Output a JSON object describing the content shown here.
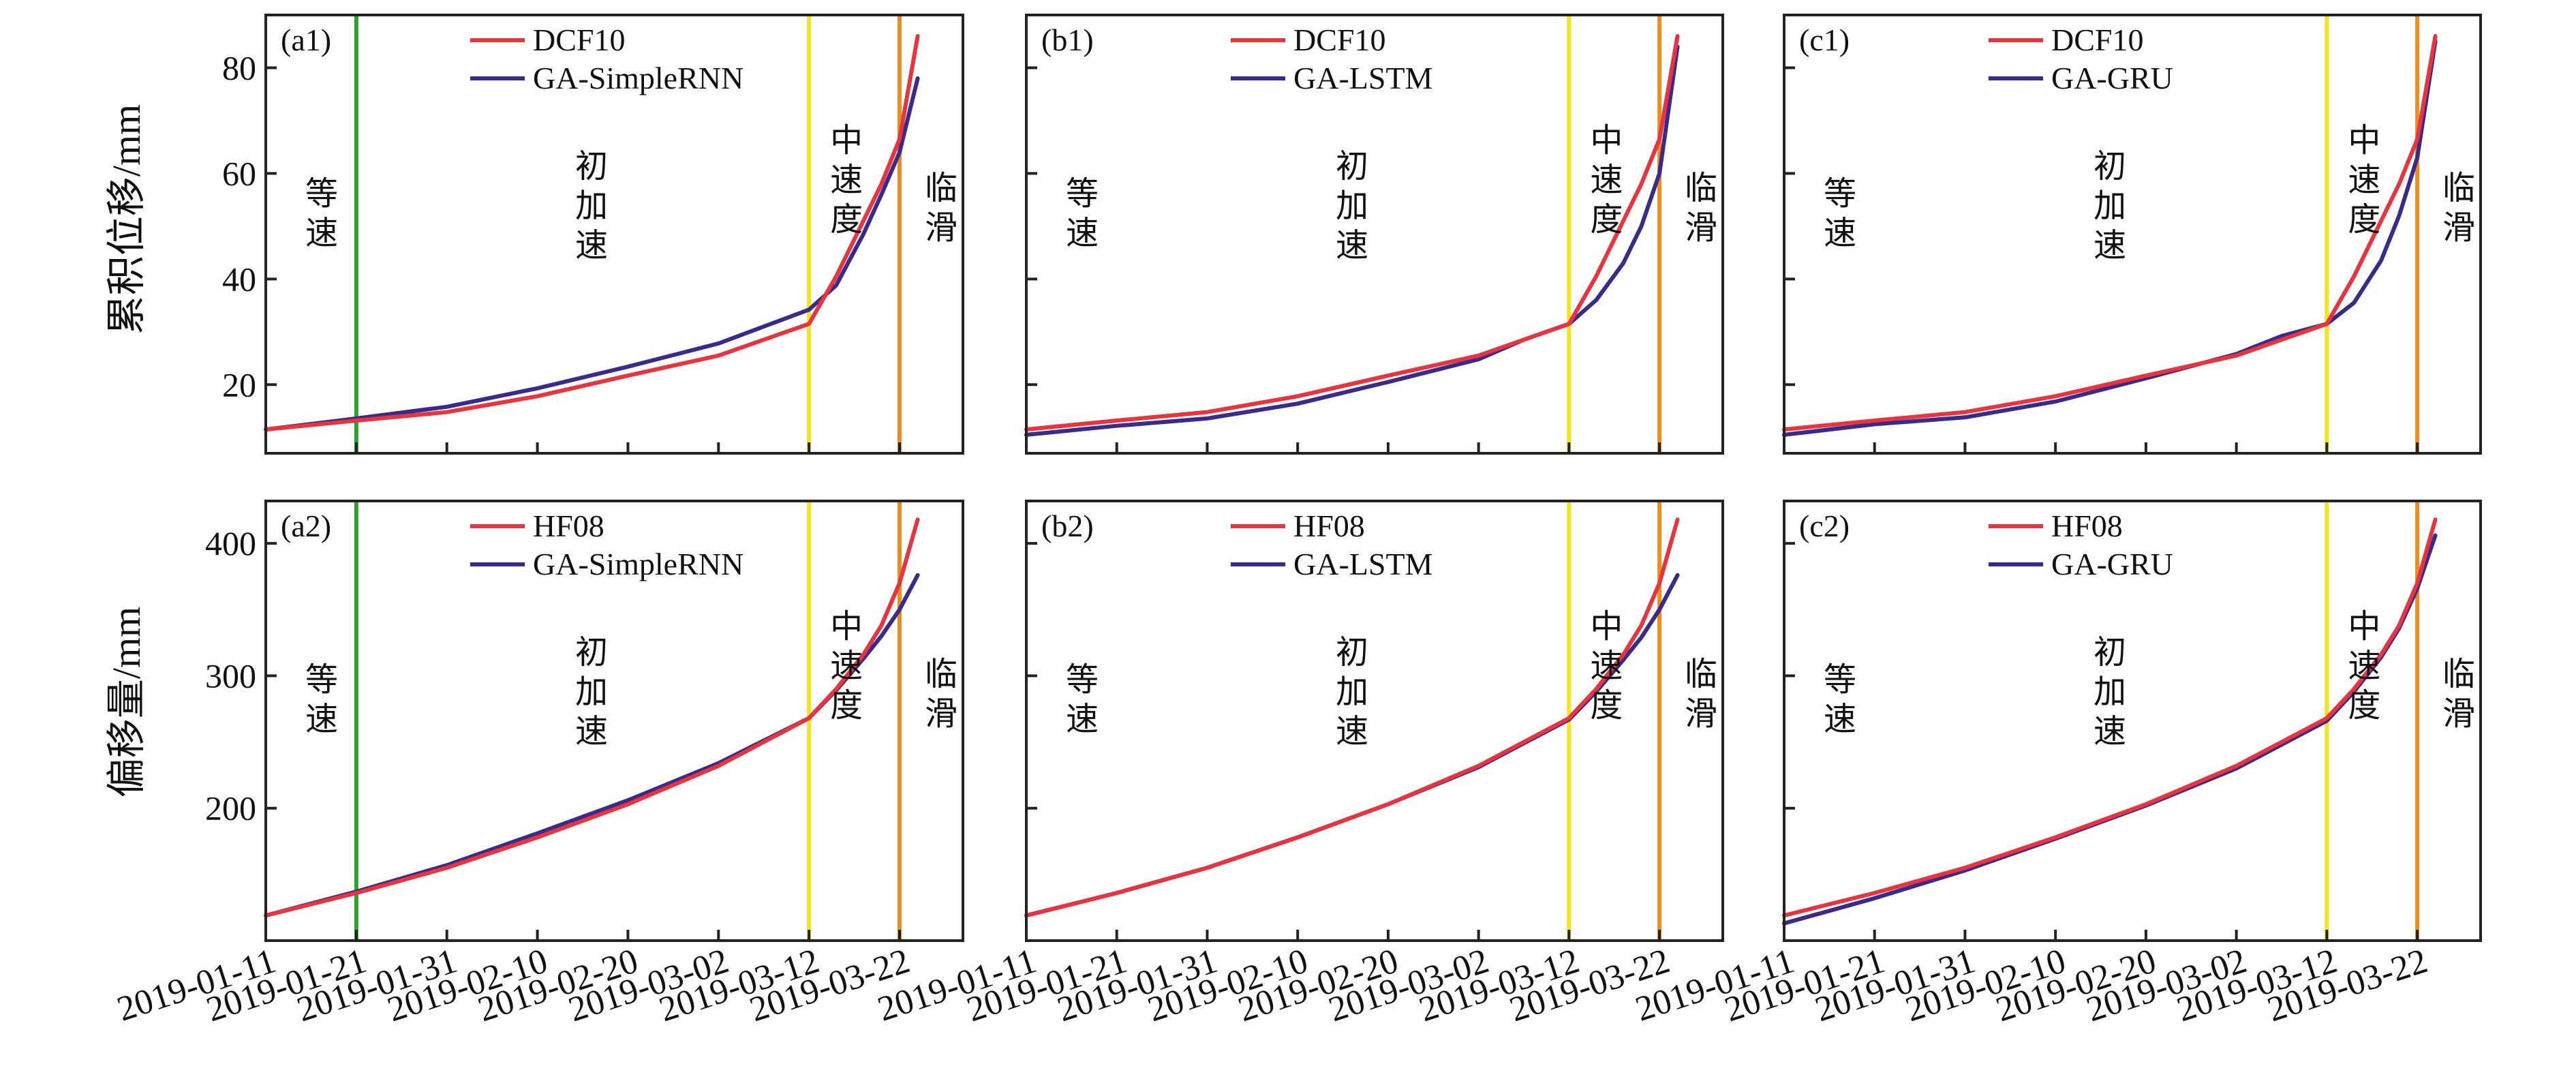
{
  "chart_data": {
    "type": "line",
    "layout": "2x3 grid",
    "colors": {
      "observed": "#e8343f",
      "predicted": "#3a2a8a",
      "stage1": "#2ea02e",
      "stage2": "#f2e51c",
      "stage3": "#f08c1e",
      "frame": "#222222"
    },
    "x_axis": {
      "type": "date",
      "start": "2019-01-11",
      "end": "2019-03-29",
      "tick_labels": [
        "2019-01-11",
        "2019-01-21",
        "2019-01-31",
        "2019-02-10",
        "2019-02-20",
        "2019-03-02",
        "2019-03-12",
        "2019-03-22"
      ],
      "tick_days": [
        0,
        10,
        20,
        30,
        40,
        50,
        60,
        70
      ]
    },
    "stage_boundaries": {
      "stage_line_1": "2019-01-21",
      "stage_line_2": "2019-03-12",
      "stage_line_3": "2019-03-22"
    },
    "rows": [
      {
        "ylabel": "累积位移/mm",
        "ylim": [
          7,
          90
        ],
        "yticks": [
          20,
          40,
          60,
          80
        ],
        "observed_name": "DCF10",
        "stage_labels": [
          "等速",
          "初加速",
          "中速度",
          "临滑"
        ],
        "observed": {
          "x": [
            "2019-01-11",
            "2019-01-21",
            "2019-01-31",
            "2019-02-10",
            "2019-02-20",
            "2019-03-02",
            "2019-03-07",
            "2019-03-12",
            "2019-03-15",
            "2019-03-18",
            "2019-03-20",
            "2019-03-22",
            "2019-03-24"
          ],
          "y": [
            11.5,
            13.2,
            14.8,
            17.8,
            21.7,
            25.5,
            28.5,
            31.5,
            40.5,
            51,
            58,
            66.5,
            86
          ]
        },
        "panels": [
          {
            "panel_label": "(a1)",
            "predicted_name": "GA-SimpleRNN",
            "predicted": {
              "x": [
                "2019-01-11",
                "2019-01-21",
                "2019-01-31",
                "2019-02-10",
                "2019-02-20",
                "2019-03-02",
                "2019-03-07",
                "2019-03-12",
                "2019-03-15",
                "2019-03-18",
                "2019-03-20",
                "2019-03-22",
                "2019-03-24"
              ],
              "y": [
                11.5,
                13.6,
                15.8,
                19.3,
                23.4,
                27.8,
                31,
                34.2,
                38.8,
                48.5,
                56,
                64,
                78
              ]
            },
            "stage_lines": [
              "2019-01-21",
              "2019-03-12",
              "2019-03-22"
            ]
          },
          {
            "panel_label": "(b1)",
            "predicted_name": "GA-LSTM",
            "predicted": {
              "x": [
                "2019-01-11",
                "2019-01-21",
                "2019-01-31",
                "2019-02-10",
                "2019-02-20",
                "2019-03-02",
                "2019-03-07",
                "2019-03-12",
                "2019-03-15",
                "2019-03-18",
                "2019-03-20",
                "2019-03-22",
                "2019-03-24"
              ],
              "y": [
                10.5,
                12.2,
                13.6,
                16.4,
                20.5,
                24.8,
                28.5,
                31.5,
                36,
                43,
                50,
                60,
                84
              ]
            },
            "stage_lines": [
              "2019-03-12",
              "2019-03-22"
            ]
          },
          {
            "panel_label": "(c1)",
            "predicted_name": "GA-GRU",
            "predicted": {
              "x": [
                "2019-01-11",
                "2019-01-21",
                "2019-01-31",
                "2019-02-10",
                "2019-02-20",
                "2019-03-02",
                "2019-03-07",
                "2019-03-12",
                "2019-03-15",
                "2019-03-18",
                "2019-03-20",
                "2019-03-22",
                "2019-03-24"
              ],
              "y": [
                10.5,
                12.5,
                13.8,
                16.8,
                21.2,
                25.8,
                29.2,
                31.5,
                35.5,
                43.5,
                52,
                63,
                85
              ]
            },
            "stage_lines": [
              "2019-03-12",
              "2019-03-22"
            ]
          }
        ]
      },
      {
        "ylabel": "偏移量/mm",
        "ylim": [
          100,
          432
        ],
        "yticks": [
          200,
          300,
          400
        ],
        "observed_name": "HF08",
        "stage_labels": [
          "等速",
          "初加速",
          "中速度",
          "临滑"
        ],
        "observed": {
          "x": [
            "2019-01-11",
            "2019-01-21",
            "2019-01-31",
            "2019-02-10",
            "2019-02-20",
            "2019-03-02",
            "2019-03-07",
            "2019-03-12",
            "2019-03-15",
            "2019-03-18",
            "2019-03-20",
            "2019-03-22",
            "2019-03-24"
          ],
          "y": [
            119,
            136,
            155,
            178,
            203,
            232,
            250,
            268,
            290,
            316,
            338,
            370,
            418
          ]
        },
        "panels": [
          {
            "panel_label": "(a2)",
            "predicted_name": "GA-SimpleRNN",
            "predicted": {
              "x": [
                "2019-01-11",
                "2019-01-21",
                "2019-01-31",
                "2019-02-10",
                "2019-02-20",
                "2019-03-02",
                "2019-03-07",
                "2019-03-12",
                "2019-03-15",
                "2019-03-18",
                "2019-03-20",
                "2019-03-22",
                "2019-03-24"
              ],
              "y": [
                119,
                137,
                157,
                181,
                206,
                234,
                251,
                268,
                289,
                313,
                330,
                350,
                376
              ]
            },
            "stage_lines": [
              "2019-01-21",
              "2019-03-12",
              "2019-03-22"
            ]
          },
          {
            "panel_label": "(b2)",
            "predicted_name": "GA-LSTM",
            "predicted": {
              "x": [
                "2019-01-11",
                "2019-01-21",
                "2019-01-31",
                "2019-02-10",
                "2019-02-20",
                "2019-03-02",
                "2019-03-07",
                "2019-03-12",
                "2019-03-15",
                "2019-03-18",
                "2019-03-20",
                "2019-03-22",
                "2019-03-24"
              ],
              "y": [
                119,
                136,
                155,
                178,
                203,
                231,
                249,
                267,
                288,
                312,
                329,
                350,
                376
              ]
            },
            "stage_lines": [
              "2019-03-12",
              "2019-03-22"
            ]
          },
          {
            "panel_label": "(c2)",
            "predicted_name": "GA-GRU",
            "predicted": {
              "x": [
                "2019-01-11",
                "2019-01-21",
                "2019-01-31",
                "2019-02-10",
                "2019-02-20",
                "2019-03-02",
                "2019-03-07",
                "2019-03-12",
                "2019-03-15",
                "2019-03-18",
                "2019-03-20",
                "2019-03-22",
                "2019-03-24"
              ],
              "y": [
                113,
                132,
                153,
                177,
                202,
                230,
                248,
                266,
                288,
                314,
                336,
                366,
                406
              ]
            },
            "stage_lines": [
              "2019-03-12",
              "2019-03-22"
            ]
          }
        ]
      }
    ]
  }
}
